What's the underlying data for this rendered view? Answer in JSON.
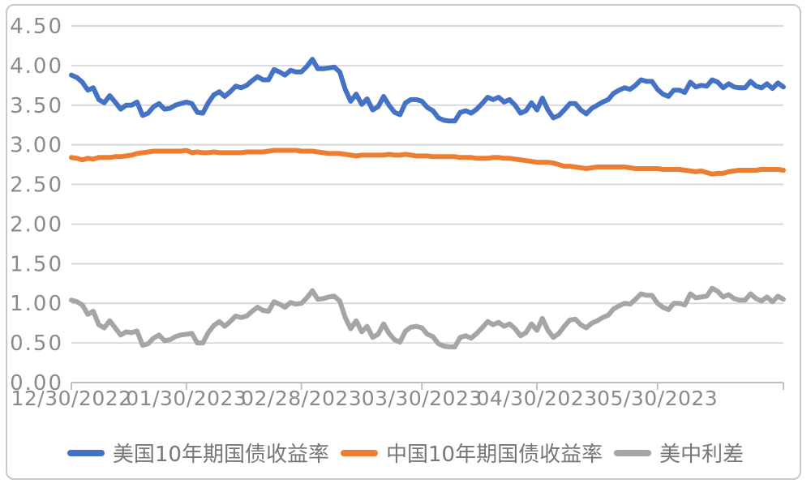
{
  "chart_data": {
    "type": "line",
    "title": "",
    "xlabel": "",
    "ylabel": "",
    "ylim": [
      0.0,
      4.5
    ],
    "grid": true,
    "legend_position": "bottom",
    "y_tick_labels": [
      "0.00",
      "0.50",
      "1.00",
      "1.50",
      "2.00",
      "2.50",
      "3.00",
      "3.50",
      "4.00",
      "4.50"
    ],
    "x_tick_labels": [
      "12/30/2022",
      "01/30/2023",
      "02/28/2023",
      "03/30/2023",
      "04/30/2023",
      "05/30/2023"
    ],
    "x_tick_indices": [
      0,
      21,
      42,
      64,
      85,
      107
    ],
    "n_points": 131,
    "series": [
      {
        "name": "美国10年期国债收益率",
        "color": "#4472C4",
        "values": [
          3.88,
          3.85,
          3.79,
          3.69,
          3.72,
          3.57,
          3.53,
          3.62,
          3.54,
          3.45,
          3.5,
          3.5,
          3.54,
          3.37,
          3.4,
          3.48,
          3.52,
          3.45,
          3.46,
          3.5,
          3.52,
          3.54,
          3.52,
          3.41,
          3.4,
          3.53,
          3.63,
          3.67,
          3.61,
          3.67,
          3.74,
          3.72,
          3.75,
          3.81,
          3.86,
          3.82,
          3.82,
          3.95,
          3.92,
          3.88,
          3.94,
          3.92,
          3.92,
          3.99,
          4.08,
          3.96,
          3.96,
          3.97,
          3.98,
          3.92,
          3.7,
          3.55,
          3.64,
          3.51,
          3.58,
          3.44,
          3.48,
          3.61,
          3.5,
          3.41,
          3.38,
          3.53,
          3.57,
          3.57,
          3.55,
          3.47,
          3.43,
          3.34,
          3.31,
          3.3,
          3.3,
          3.41,
          3.43,
          3.4,
          3.45,
          3.52,
          3.6,
          3.57,
          3.6,
          3.54,
          3.57,
          3.5,
          3.4,
          3.43,
          3.53,
          3.44,
          3.59,
          3.44,
          3.34,
          3.37,
          3.44,
          3.52,
          3.52,
          3.44,
          3.39,
          3.46,
          3.5,
          3.54,
          3.57,
          3.65,
          3.69,
          3.72,
          3.7,
          3.75,
          3.82,
          3.8,
          3.8,
          3.7,
          3.64,
          3.61,
          3.69,
          3.69,
          3.66,
          3.79,
          3.73,
          3.75,
          3.74,
          3.82,
          3.79,
          3.72,
          3.77,
          3.73,
          3.72,
          3.72,
          3.8,
          3.74,
          3.72,
          3.77,
          3.71,
          3.78,
          3.73
        ]
      },
      {
        "name": "中国10年期国债收益率",
        "color": "#ED7D31",
        "values": [
          2.84,
          2.83,
          2.81,
          2.83,
          2.82,
          2.84,
          2.84,
          2.84,
          2.85,
          2.85,
          2.86,
          2.87,
          2.89,
          2.9,
          2.91,
          2.92,
          2.92,
          2.92,
          2.92,
          2.92,
          2.92,
          2.93,
          2.9,
          2.91,
          2.9,
          2.9,
          2.91,
          2.9,
          2.9,
          2.9,
          2.9,
          2.9,
          2.91,
          2.91,
          2.91,
          2.91,
          2.92,
          2.93,
          2.93,
          2.93,
          2.93,
          2.93,
          2.92,
          2.92,
          2.92,
          2.91,
          2.9,
          2.89,
          2.89,
          2.89,
          2.88,
          2.87,
          2.86,
          2.87,
          2.87,
          2.87,
          2.87,
          2.87,
          2.88,
          2.87,
          2.87,
          2.88,
          2.87,
          2.86,
          2.86,
          2.86,
          2.85,
          2.85,
          2.85,
          2.85,
          2.85,
          2.84,
          2.84,
          2.84,
          2.83,
          2.83,
          2.83,
          2.84,
          2.84,
          2.83,
          2.83,
          2.82,
          2.81,
          2.8,
          2.79,
          2.78,
          2.78,
          2.78,
          2.77,
          2.75,
          2.73,
          2.73,
          2.72,
          2.71,
          2.7,
          2.71,
          2.72,
          2.72,
          2.72,
          2.72,
          2.72,
          2.72,
          2.71,
          2.7,
          2.7,
          2.7,
          2.7,
          2.7,
          2.69,
          2.69,
          2.69,
          2.69,
          2.68,
          2.67,
          2.66,
          2.67,
          2.65,
          2.63,
          2.64,
          2.64,
          2.66,
          2.67,
          2.68,
          2.68,
          2.68,
          2.68,
          2.69,
          2.69,
          2.69,
          2.69,
          2.68
        ]
      },
      {
        "name": "美中利差",
        "color": "#A5A5A5",
        "values": [
          1.04,
          1.02,
          0.98,
          0.86,
          0.9,
          0.73,
          0.69,
          0.78,
          0.69,
          0.6,
          0.64,
          0.63,
          0.65,
          0.47,
          0.49,
          0.56,
          0.6,
          0.53,
          0.54,
          0.58,
          0.6,
          0.61,
          0.62,
          0.5,
          0.5,
          0.63,
          0.72,
          0.77,
          0.71,
          0.77,
          0.84,
          0.82,
          0.84,
          0.9,
          0.95,
          0.91,
          0.9,
          1.02,
          0.99,
          0.95,
          1.01,
          0.99,
          1.0,
          1.07,
          1.16,
          1.05,
          1.06,
          1.08,
          1.09,
          1.03,
          0.82,
          0.68,
          0.78,
          0.64,
          0.71,
          0.57,
          0.61,
          0.74,
          0.62,
          0.54,
          0.51,
          0.65,
          0.7,
          0.71,
          0.69,
          0.61,
          0.58,
          0.49,
          0.46,
          0.45,
          0.45,
          0.57,
          0.59,
          0.56,
          0.62,
          0.69,
          0.77,
          0.73,
          0.76,
          0.71,
          0.74,
          0.68,
          0.59,
          0.63,
          0.74,
          0.66,
          0.81,
          0.66,
          0.57,
          0.62,
          0.71,
          0.79,
          0.8,
          0.73,
          0.69,
          0.75,
          0.78,
          0.82,
          0.85,
          0.93,
          0.97,
          1.0,
          0.99,
          1.05,
          1.12,
          1.1,
          1.1,
          1.0,
          0.95,
          0.92,
          1.0,
          1.0,
          0.98,
          1.12,
          1.07,
          1.08,
          1.09,
          1.19,
          1.15,
          1.08,
          1.11,
          1.06,
          1.04,
          1.04,
          1.12,
          1.06,
          1.03,
          1.08,
          1.02,
          1.09,
          1.05
        ]
      }
    ]
  },
  "colors": {
    "background": "#FFFFFF",
    "frame_border": "#C9C9C9",
    "gridline": "#D9D9D9",
    "axis_line": "#BFBFBF",
    "tick_text": "#8A8A8A",
    "legend_text": "#767676"
  }
}
